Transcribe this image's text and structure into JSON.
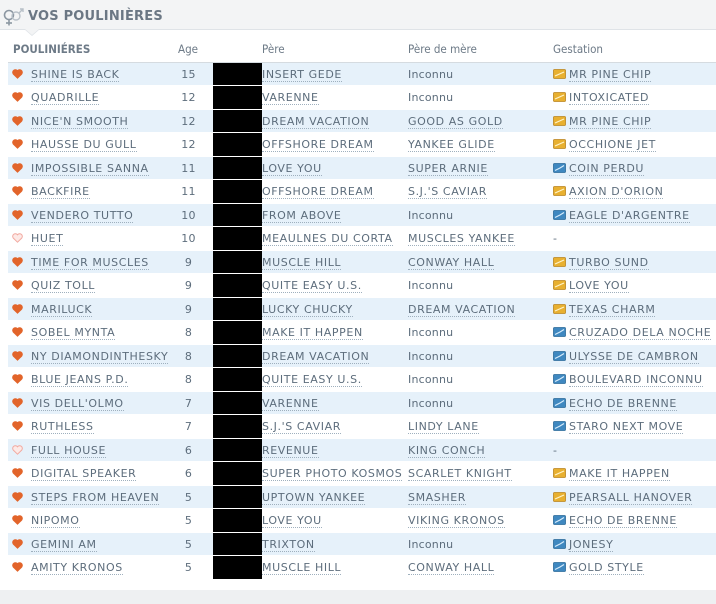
{
  "header": {
    "title": "VOS POULINIÈRES"
  },
  "columns": {
    "name": "POULINIÉRES",
    "age": "Age",
    "pere": "Père",
    "pere_de_mere": "Père de mère",
    "gestation": "Gestation"
  },
  "colors": {
    "row_alt": "#e6f1fa",
    "heart_full": "#e2642a",
    "heart_empty": "#f2a9a0",
    "gest_yellow": "#e8b030",
    "gest_blue": "#3f88c0",
    "redaction": "#000000"
  },
  "rows": [
    {
      "name": "SHINE IS BACK",
      "age": "15",
      "heart": "full",
      "pere": "INSERT GEDE",
      "pm": "Inconnu",
      "pm_link": false,
      "gest": "MR PINE CHIP",
      "gest_icon": "yellow"
    },
    {
      "name": "QUADRILLE",
      "age": "12",
      "heart": "full",
      "pere": "VARENNE",
      "pm": "Inconnu",
      "pm_link": false,
      "gest": "INTOXICATED",
      "gest_icon": "yellow"
    },
    {
      "name": "NICE'N SMOOTH",
      "age": "12",
      "heart": "full",
      "pere": "DREAM VACATION",
      "pm": "GOOD AS GOLD",
      "pm_link": true,
      "gest": "MR PINE CHIP",
      "gest_icon": "yellow"
    },
    {
      "name": "HAUSSE DU GULL",
      "age": "12",
      "heart": "full",
      "pere": "OFFSHORE DREAM",
      "pm": "YANKEE GLIDE",
      "pm_link": true,
      "gest": "OCCHIONE JET",
      "gest_icon": "yellow"
    },
    {
      "name": "IMPOSSIBLE SANNA",
      "age": "11",
      "heart": "full",
      "pere": "LOVE YOU",
      "pm": "SUPER ARNIE",
      "pm_link": true,
      "gest": "COIN PERDU",
      "gest_icon": "blue"
    },
    {
      "name": "BACKFIRE",
      "age": "11",
      "heart": "full",
      "pere": "OFFSHORE DREAM",
      "pm": "S.J.'S CAVIAR",
      "pm_link": true,
      "gest": "AXION D'ORION",
      "gest_icon": "yellow"
    },
    {
      "name": "VENDERO TUTTO",
      "age": "10",
      "heart": "full",
      "pere": "FROM ABOVE",
      "pm": "Inconnu",
      "pm_link": false,
      "gest": "EAGLE D'ARGENTRE",
      "gest_icon": "blue"
    },
    {
      "name": "HUET",
      "age": "10",
      "heart": "empty",
      "pere": "MEAULNES DU CORTA",
      "pm": "MUSCLES YANKEE",
      "pm_link": true,
      "gest": "-",
      "gest_icon": "none"
    },
    {
      "name": "TIME FOR MUSCLES",
      "age": "9",
      "heart": "full",
      "pere": "MUSCLE HILL",
      "pm": "CONWAY HALL",
      "pm_link": true,
      "gest": "TURBO SUND",
      "gest_icon": "yellow"
    },
    {
      "name": "QUIZ TOLL",
      "age": "9",
      "heart": "full",
      "pere": "QUITE EASY U.S.",
      "pm": "Inconnu",
      "pm_link": false,
      "gest": "LOVE YOU",
      "gest_icon": "yellow"
    },
    {
      "name": "MARILUCK",
      "age": "9",
      "heart": "full",
      "pere": "LUCKY CHUCKY",
      "pm": "DREAM VACATION",
      "pm_link": true,
      "gest": "TEXAS CHARM",
      "gest_icon": "yellow"
    },
    {
      "name": "SOBEL MYNTA",
      "age": "8",
      "heart": "full",
      "pere": "MAKE IT HAPPEN",
      "pm": "Inconnu",
      "pm_link": false,
      "gest": "CRUZADO DELA NOCHE",
      "gest_icon": "blue"
    },
    {
      "name": "NY DIAMONDINTHESKY",
      "age": "8",
      "heart": "full",
      "pere": "DREAM VACATION",
      "pm": "Inconnu",
      "pm_link": false,
      "gest": "ULYSSE DE CAMBRON",
      "gest_icon": "blue"
    },
    {
      "name": "BLUE JEANS P.D.",
      "age": "8",
      "heart": "full",
      "pere": "QUITE EASY U.S.",
      "pm": "Inconnu",
      "pm_link": false,
      "gest": "BOULEVARD INCONNU",
      "gest_icon": "blue"
    },
    {
      "name": "VIS DELL'OLMO",
      "age": "7",
      "heart": "full",
      "pere": "VARENNE",
      "pm": "Inconnu",
      "pm_link": false,
      "gest": "ECHO DE BRENNE",
      "gest_icon": "blue"
    },
    {
      "name": "RUTHLESS",
      "age": "7",
      "heart": "full",
      "pere": "S.J.'S CAVIAR",
      "pm": "LINDY LANE",
      "pm_link": true,
      "gest": "STARO NEXT MOVE",
      "gest_icon": "blue"
    },
    {
      "name": "FULL HOUSE",
      "age": "6",
      "heart": "empty",
      "pere": "REVENUE",
      "pm": "KING CONCH",
      "pm_link": true,
      "gest": "-",
      "gest_icon": "none"
    },
    {
      "name": "DIGITAL SPEAKER",
      "age": "6",
      "heart": "full",
      "pere": "SUPER PHOTO KOSMOS",
      "pm": "SCARLET KNIGHT",
      "pm_link": true,
      "gest": "MAKE IT HAPPEN",
      "gest_icon": "yellow"
    },
    {
      "name": "STEPS FROM HEAVEN",
      "age": "5",
      "heart": "full",
      "pere": "UPTOWN YANKEE",
      "pm": "SMASHER",
      "pm_link": true,
      "gest": "PEARSALL HANOVER",
      "gest_icon": "yellow"
    },
    {
      "name": "NIPOMO",
      "age": "5",
      "heart": "full",
      "pere": "LOVE YOU",
      "pm": "VIKING KRONOS",
      "pm_link": true,
      "gest": "ECHO DE BRENNE",
      "gest_icon": "blue"
    },
    {
      "name": "GEMINI AM",
      "age": "5",
      "heart": "full",
      "pere": "TRIXTON",
      "pm": "Inconnu",
      "pm_link": false,
      "gest": "JONESY",
      "gest_icon": "blue"
    },
    {
      "name": "AMITY KRONOS",
      "age": "5",
      "heart": "full",
      "pere": "MUSCLE HILL",
      "pm": "CONWAY HALL",
      "pm_link": true,
      "gest": "GOLD STYLE",
      "gest_icon": "blue"
    }
  ]
}
